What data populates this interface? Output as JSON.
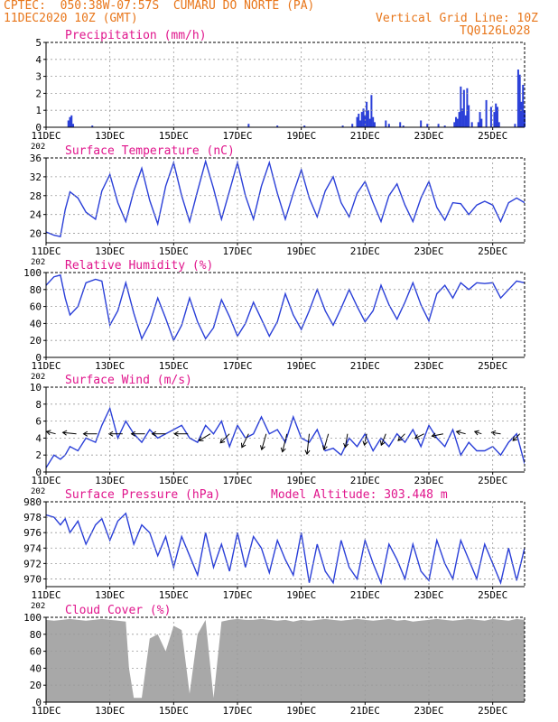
{
  "header": {
    "line1": "CPTEC:  050:38W-07:57S  CUMARU DO NORTE (PA)",
    "line2": "11DEC2020 10Z (GMT)",
    "grid_note": "Vertical Grid Line: 10Z",
    "code": "TQ0126L028",
    "model_altitude": "Model Altitude: 303.448 m"
  },
  "colors": {
    "header": "#e8761a",
    "title": "#e0158c",
    "line": "#2a3fd8",
    "bar": "#2a3fd8",
    "cloud": "#a8a8a8"
  },
  "x_axis": {
    "labels": [
      "11DEC",
      "13DEC",
      "15DEC",
      "17DEC",
      "19DEC",
      "21DEC",
      "23DEC",
      "25DEC"
    ],
    "label_day": [
      0,
      2,
      4,
      6,
      8,
      10,
      12,
      14
    ],
    "range_days": [
      0,
      15
    ],
    "year_fragment": "202"
  },
  "chart_data": [
    {
      "type": "bar",
      "title": "Precipitation (mm/h)",
      "ylim": [
        0,
        5
      ],
      "yticks": [
        0,
        1,
        2,
        3,
        4,
        5
      ],
      "x_day": [
        0.7,
        0.75,
        0.8,
        0.85,
        1.45,
        6.35,
        7.25,
        8.1,
        9.3,
        9.6,
        9.75,
        9.8,
        9.85,
        9.9,
        9.95,
        10.0,
        10.05,
        10.1,
        10.15,
        10.2,
        10.25,
        10.3,
        10.65,
        10.75,
        11.1,
        11.2,
        11.75,
        11.95,
        12.3,
        12.5,
        12.8,
        12.85,
        12.9,
        12.95,
        13.0,
        13.05,
        13.1,
        13.15,
        13.2,
        13.25,
        13.35,
        13.55,
        13.6,
        13.65,
        13.8,
        13.95,
        14.05,
        14.1,
        14.15,
        14.2,
        14.7,
        14.8,
        14.85,
        14.9,
        14.95,
        15.0
      ],
      "values": [
        0.4,
        0.6,
        0.7,
        0.2,
        0.1,
        0.2,
        0.1,
        0.1,
        0.1,
        0.2,
        0.6,
        0.8,
        0.4,
        0.9,
        1.1,
        0.7,
        1.5,
        1.0,
        0.5,
        1.9,
        0.6,
        0.3,
        0.4,
        0.2,
        0.3,
        0.1,
        0.4,
        0.2,
        0.2,
        0.1,
        0.3,
        0.6,
        0.5,
        0.9,
        2.4,
        1.1,
        2.2,
        0.7,
        2.3,
        1.3,
        0.3,
        0.3,
        0.9,
        0.5,
        1.6,
        1.2,
        0.9,
        1.4,
        1.2,
        0.3,
        0.2,
        3.4,
        3.1,
        1.5,
        2.5,
        1.0
      ]
    },
    {
      "type": "line",
      "title": "Surface Temperature (nC)",
      "ylim": [
        18,
        36
      ],
      "yticks": [
        20,
        24,
        28,
        32,
        36
      ],
      "x_day": [
        0.0,
        0.25,
        0.45,
        0.6,
        0.75,
        1.0,
        1.25,
        1.55,
        1.75,
        2.0,
        2.25,
        2.5,
        2.75,
        3.0,
        3.25,
        3.5,
        3.75,
        4.0,
        4.25,
        4.5,
        4.75,
        5.0,
        5.25,
        5.5,
        5.75,
        6.0,
        6.25,
        6.5,
        6.75,
        7.0,
        7.25,
        7.5,
        7.75,
        8.0,
        8.25,
        8.5,
        8.75,
        9.0,
        9.25,
        9.5,
        9.75,
        10.0,
        10.25,
        10.5,
        10.75,
        11.0,
        11.25,
        11.5,
        11.75,
        12.0,
        12.25,
        12.5,
        12.75,
        13.0,
        13.25,
        13.5,
        13.75,
        14.0,
        14.25,
        14.5,
        14.75,
        15.0
      ],
      "values": [
        20.3,
        19.6,
        19.3,
        25.0,
        28.8,
        27.5,
        24.5,
        23.0,
        29.0,
        32.5,
        26.5,
        22.5,
        29.0,
        33.8,
        27.0,
        22.0,
        30.0,
        35.0,
        28.0,
        22.5,
        29.0,
        35.3,
        29.5,
        23.0,
        29.0,
        35.0,
        28.0,
        23.0,
        30.0,
        35.0,
        28.5,
        23.0,
        28.5,
        33.5,
        27.5,
        23.5,
        29.0,
        32.0,
        26.5,
        23.5,
        28.5,
        31.0,
        26.5,
        22.5,
        28.0,
        30.5,
        26.0,
        22.5,
        27.5,
        31.0,
        25.5,
        22.8,
        26.5,
        26.3,
        24.0,
        26.0,
        26.8,
        26.0,
        22.5,
        26.5,
        27.5,
        26.5
      ]
    },
    {
      "type": "line",
      "title": "Relative Humidity (%)",
      "ylim": [
        0,
        100
      ],
      "yticks": [
        0,
        20,
        40,
        60,
        80,
        100
      ],
      "x_day": [
        0.0,
        0.25,
        0.45,
        0.6,
        0.75,
        1.0,
        1.25,
        1.55,
        1.75,
        2.0,
        2.25,
        2.5,
        2.75,
        3.0,
        3.25,
        3.5,
        3.75,
        4.0,
        4.25,
        4.5,
        4.75,
        5.0,
        5.25,
        5.5,
        5.75,
        6.0,
        6.25,
        6.5,
        6.75,
        7.0,
        7.25,
        7.5,
        7.75,
        8.0,
        8.25,
        8.5,
        8.75,
        9.0,
        9.25,
        9.5,
        9.75,
        10.0,
        10.25,
        10.5,
        10.75,
        11.0,
        11.25,
        11.5,
        11.75,
        12.0,
        12.25,
        12.5,
        12.75,
        13.0,
        13.25,
        13.5,
        13.75,
        14.0,
        14.25,
        14.5,
        14.75,
        15.0
      ],
      "values": [
        85,
        95,
        97,
        70,
        50,
        60,
        88,
        92,
        90,
        38,
        55,
        88,
        52,
        22,
        40,
        70,
        46,
        20,
        38,
        70,
        42,
        22,
        35,
        68,
        48,
        25,
        40,
        65,
        45,
        25,
        42,
        75,
        50,
        33,
        55,
        80,
        55,
        38,
        58,
        80,
        60,
        42,
        55,
        85,
        62,
        45,
        65,
        88,
        62,
        43,
        75,
        85,
        70,
        88,
        80,
        88,
        87,
        88,
        70,
        80,
        90,
        88
      ]
    },
    {
      "type": "line",
      "title": "Surface Wind (m/s)",
      "ylim": [
        0,
        10
      ],
      "yticks": [
        0,
        2,
        4,
        6,
        8,
        10
      ],
      "x_day": [
        0.0,
        0.25,
        0.45,
        0.6,
        0.75,
        1.0,
        1.25,
        1.55,
        1.75,
        2.0,
        2.25,
        2.5,
        2.75,
        3.0,
        3.25,
        3.5,
        3.75,
        4.0,
        4.25,
        4.5,
        4.75,
        5.0,
        5.25,
        5.5,
        5.75,
        6.0,
        6.25,
        6.5,
        6.75,
        7.0,
        7.25,
        7.5,
        7.75,
        8.0,
        8.25,
        8.5,
        8.75,
        9.0,
        9.25,
        9.5,
        9.75,
        10.0,
        10.25,
        10.5,
        10.75,
        11.0,
        11.25,
        11.5,
        11.75,
        12.0,
        12.25,
        12.5,
        12.75,
        13.0,
        13.25,
        13.5,
        13.75,
        14.0,
        14.25,
        14.5,
        14.75,
        15.0
      ],
      "values": [
        0.5,
        2.0,
        1.5,
        2.0,
        3.0,
        2.5,
        4.0,
        3.5,
        5.5,
        7.5,
        4.0,
        6.0,
        4.5,
        3.5,
        5.0,
        4.0,
        4.5,
        5.0,
        5.5,
        4.0,
        3.5,
        5.5,
        4.5,
        6.0,
        3.0,
        5.5,
        4.0,
        4.5,
        6.5,
        4.5,
        5.0,
        3.5,
        6.5,
        4.0,
        3.5,
        5.0,
        2.5,
        2.8,
        2.0,
        4.0,
        3.0,
        4.5,
        2.5,
        4.0,
        3.0,
        4.5,
        3.5,
        5.0,
        3.0,
        5.5,
        4.0,
        3.0,
        5.0,
        2.0,
        3.5,
        2.5,
        2.5,
        3.0,
        2.0,
        3.5,
        4.5,
        1.0
      ],
      "vectors": {
        "x_day": [
          0.3,
          0.95,
          1.6,
          2.4,
          3.1,
          3.75,
          4.45,
          5.15,
          5.75,
          6.35,
          6.9,
          7.55,
          8.25,
          8.85,
          9.45,
          10.05,
          10.65,
          11.25,
          11.85,
          12.45,
          13.15,
          13.65,
          14.25,
          14.85
        ],
        "u": [
          -2.0,
          -3.0,
          -3.0,
          -3.0,
          -3.0,
          -3.0,
          -3.0,
          -2.5,
          -2.0,
          -1.5,
          -1.0,
          -1.0,
          -0.5,
          -1.0,
          -0.5,
          -0.5,
          -1.0,
          -1.5,
          -2.0,
          -2.5,
          -2.0,
          -1.5,
          -2.0,
          -1.5
        ],
        "v": [
          0.5,
          0.3,
          0.0,
          0.0,
          0.0,
          0.0,
          0.0,
          -1.5,
          -2.0,
          -3.0,
          -3.5,
          -4.0,
          -4.5,
          -3.5,
          -3.0,
          -2.5,
          -2.5,
          -1.5,
          -1.0,
          -0.5,
          0.5,
          0.5,
          0.3,
          -1.5
        ]
      }
    },
    {
      "type": "line",
      "title": "Surface Pressure (hPa)",
      "ylim": [
        969,
        980
      ],
      "yticks": [
        970,
        972,
        974,
        976,
        978,
        980
      ],
      "x_day": [
        0.0,
        0.25,
        0.45,
        0.6,
        0.75,
        1.0,
        1.25,
        1.55,
        1.75,
        2.0,
        2.25,
        2.5,
        2.75,
        3.0,
        3.25,
        3.5,
        3.75,
        4.0,
        4.25,
        4.5,
        4.75,
        5.0,
        5.25,
        5.5,
        5.75,
        6.0,
        6.25,
        6.5,
        6.75,
        7.0,
        7.25,
        7.5,
        7.75,
        8.0,
        8.25,
        8.5,
        8.75,
        9.0,
        9.25,
        9.5,
        9.75,
        10.0,
        10.25,
        10.5,
        10.75,
        11.0,
        11.25,
        11.5,
        11.75,
        12.0,
        12.25,
        12.5,
        12.75,
        13.0,
        13.25,
        13.5,
        13.75,
        14.0,
        14.25,
        14.5,
        14.75,
        15.0
      ],
      "values": [
        978.3,
        978.0,
        977.0,
        977.8,
        976.0,
        977.5,
        974.5,
        977.0,
        977.8,
        975.0,
        977.5,
        978.5,
        974.5,
        977.0,
        976.0,
        973.0,
        975.5,
        971.5,
        975.5,
        973.0,
        970.5,
        976.0,
        971.5,
        974.5,
        971.0,
        976.0,
        971.5,
        975.5,
        974.0,
        970.8,
        975.0,
        972.5,
        970.5,
        976.0,
        969.5,
        974.5,
        971.0,
        969.5,
        975.0,
        971.5,
        970.0,
        975.0,
        972.0,
        969.5,
        974.5,
        972.5,
        970.0,
        974.5,
        971.0,
        969.8,
        975.0,
        972.0,
        970.0,
        975.0,
        972.5,
        970.0,
        974.5,
        972.0,
        969.5,
        974.0,
        969.8,
        974.0
      ]
    },
    {
      "type": "area",
      "title": "Cloud Cover (%)",
      "ylim": [
        0,
        100
      ],
      "yticks": [
        0,
        20,
        40,
        60,
        80,
        100
      ],
      "x_day": [
        0.0,
        0.25,
        0.5,
        0.75,
        1.0,
        1.25,
        1.5,
        1.75,
        2.0,
        2.25,
        2.5,
        2.6,
        2.75,
        3.0,
        3.25,
        3.5,
        3.75,
        4.0,
        4.25,
        4.5,
        4.75,
        5.0,
        5.25,
        5.5,
        5.75,
        6.0,
        6.25,
        6.5,
        6.75,
        7.0,
        7.25,
        7.5,
        7.75,
        8.0,
        8.25,
        8.5,
        8.75,
        9.0,
        9.25,
        9.5,
        9.75,
        10.0,
        10.25,
        10.5,
        10.75,
        11.0,
        11.25,
        11.5,
        11.75,
        12.0,
        12.25,
        12.5,
        12.75,
        13.0,
        13.25,
        13.5,
        13.75,
        14.0,
        14.25,
        14.5,
        14.75,
        15.0
      ],
      "values": [
        97,
        96,
        97,
        98,
        97,
        96,
        97,
        98,
        97,
        96,
        95,
        40,
        5,
        5,
        75,
        80,
        60,
        90,
        85,
        10,
        80,
        97,
        5,
        95,
        97,
        98,
        97,
        97,
        98,
        97,
        96,
        97,
        95,
        97,
        96,
        97,
        98,
        97,
        96,
        97,
        98,
        97,
        96,
        97,
        98,
        96,
        97,
        95,
        96,
        97,
        98,
        97,
        96,
        97,
        98,
        97,
        96,
        98,
        97,
        96,
        98,
        97
      ]
    }
  ]
}
